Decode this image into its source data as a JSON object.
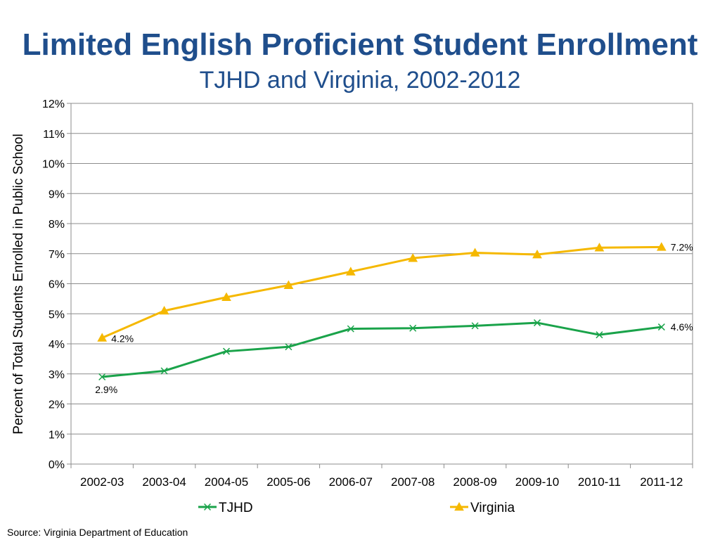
{
  "title": "Limited English Proficient Student Enrollment",
  "subtitle": "TJHD and Virginia, 2002-2012",
  "source": "Source: Virginia Department of Education",
  "chart_data": {
    "type": "line",
    "ylabel": "Percent of Total Students Enrolled in Public School",
    "xlabel": "",
    "ylim": [
      0,
      12
    ],
    "y_ticks": [
      "0%",
      "1%",
      "2%",
      "3%",
      "4%",
      "5%",
      "6%",
      "7%",
      "8%",
      "9%",
      "10%",
      "11%",
      "12%"
    ],
    "grid": true,
    "legend_position": "bottom",
    "categories": [
      "2002-03",
      "2003-04",
      "2004-05",
      "2005-06",
      "2006-07",
      "2007-08",
      "2008-09",
      "2009-10",
      "2010-11",
      "2011-12"
    ],
    "series": [
      {
        "name": "TJHD",
        "color": "#1aa34a",
        "marker": "x",
        "values": [
          2.9,
          3.1,
          3.75,
          3.9,
          4.5,
          4.52,
          4.6,
          4.7,
          4.3,
          4.56
        ],
        "data_labels": [
          "2.9%",
          "",
          "",
          "",
          "",
          "",
          "",
          "",
          "",
          "4.6%"
        ]
      },
      {
        "name": "Virginia",
        "color": "#f5b800",
        "marker": "triangle",
        "values": [
          4.2,
          5.1,
          5.55,
          5.95,
          6.4,
          6.85,
          7.03,
          6.97,
          7.2,
          7.22
        ],
        "data_labels": [
          "4.2%",
          "",
          "",
          "",
          "",
          "",
          "",
          "",
          "",
          "7.2%"
        ]
      }
    ]
  }
}
